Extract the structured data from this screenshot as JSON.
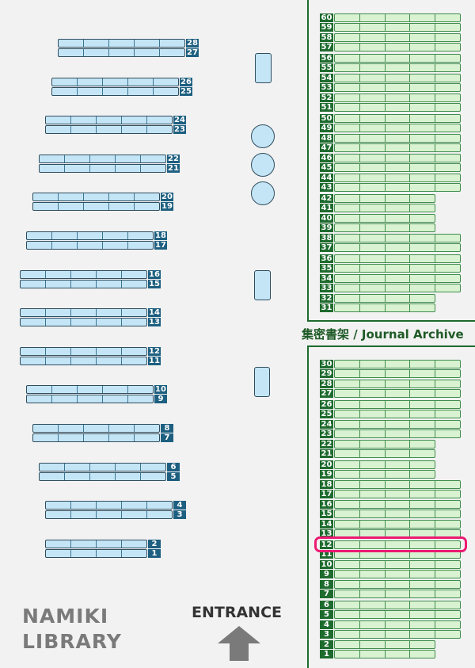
{
  "library_name": [
    "NAMIKI",
    "LIBRARY"
  ],
  "entrance_label": "ENTRANCE",
  "archive_label": "集密書架 / Journal Archive",
  "highlighted_shelf": 12,
  "colors": {
    "general_shelf": "#c4e5f6",
    "general_label": "#1d5f80",
    "archive_shelf": "#d9f2d1",
    "archive_label": "#1e6b2e",
    "highlight": "#ec1a72",
    "entrance_arrow": "#7a7a7a"
  },
  "general_shelves": [
    {
      "pair": [
        28,
        27
      ],
      "cells": 5
    },
    {
      "pair": [
        26,
        25
      ],
      "cells": 5
    },
    {
      "pair": [
        24,
        23
      ],
      "cells": 5
    },
    {
      "pair": [
        22,
        21
      ],
      "cells": 5
    },
    {
      "pair": [
        20,
        19
      ],
      "cells": 5
    },
    {
      "pair": [
        18,
        17
      ],
      "cells": 5
    },
    {
      "pair": [
        16,
        15
      ],
      "cells": 5
    },
    {
      "pair": [
        14,
        13
      ],
      "cells": 5
    },
    {
      "pair": [
        12,
        11
      ],
      "cells": 5
    },
    {
      "pair": [
        10,
        9
      ],
      "cells": 5
    },
    {
      "pair": [
        8,
        7
      ],
      "cells": 5
    },
    {
      "pair": [
        6,
        5
      ],
      "cells": 5
    },
    {
      "pair": [
        4,
        3
      ],
      "cells": 5
    },
    {
      "pair": [
        2,
        1
      ],
      "cells": 4
    }
  ],
  "archive_upper": [
    {
      "pair": [
        60,
        59
      ],
      "cells": 5
    },
    {
      "pair": [
        58,
        57
      ],
      "cells": 5
    },
    {
      "pair": [
        56,
        55
      ],
      "cells": 5
    },
    {
      "pair": [
        54,
        53
      ],
      "cells": 5
    },
    {
      "pair": [
        52,
        51
      ],
      "cells": 5
    },
    {
      "pair": [
        50,
        49
      ],
      "cells": 5
    },
    {
      "pair": [
        48,
        47
      ],
      "cells": 5
    },
    {
      "pair": [
        46,
        45
      ],
      "cells": 5
    },
    {
      "pair": [
        44,
        43
      ],
      "cells": 5
    },
    {
      "pair": [
        42,
        41
      ],
      "cells": 4
    },
    {
      "pair": [
        40,
        39
      ],
      "cells": 4
    },
    {
      "pair": [
        38,
        37
      ],
      "cells": 5
    },
    {
      "pair": [
        36,
        35
      ],
      "cells": 5
    },
    {
      "pair": [
        34,
        33
      ],
      "cells": 5
    },
    {
      "pair": [
        32,
        31
      ],
      "cells": 4
    }
  ],
  "archive_lower": [
    {
      "pair": [
        30,
        29
      ],
      "cells": 5
    },
    {
      "pair": [
        28,
        27
      ],
      "cells": 5
    },
    {
      "pair": [
        26,
        25
      ],
      "cells": 5
    },
    {
      "pair": [
        24,
        23
      ],
      "cells": 5
    },
    {
      "pair": [
        22,
        21
      ],
      "cells": 4
    },
    {
      "pair": [
        20,
        19
      ],
      "cells": 4
    },
    {
      "pair": [
        18,
        17
      ],
      "cells": 5
    },
    {
      "pair": [
        16,
        15
      ],
      "cells": 5
    },
    {
      "pair": [
        14,
        13
      ],
      "cells": 5
    },
    {
      "pair": [
        12,
        11
      ],
      "cells": 5
    },
    {
      "pair": [
        10,
        9
      ],
      "cells": 5
    },
    {
      "pair": [
        8,
        7
      ],
      "cells": 5
    },
    {
      "pair": [
        6,
        5
      ],
      "cells": 5
    },
    {
      "pair": [
        4,
        3
      ],
      "cells": 5
    },
    {
      "pair": [
        2,
        1
      ],
      "cells": 4
    }
  ]
}
